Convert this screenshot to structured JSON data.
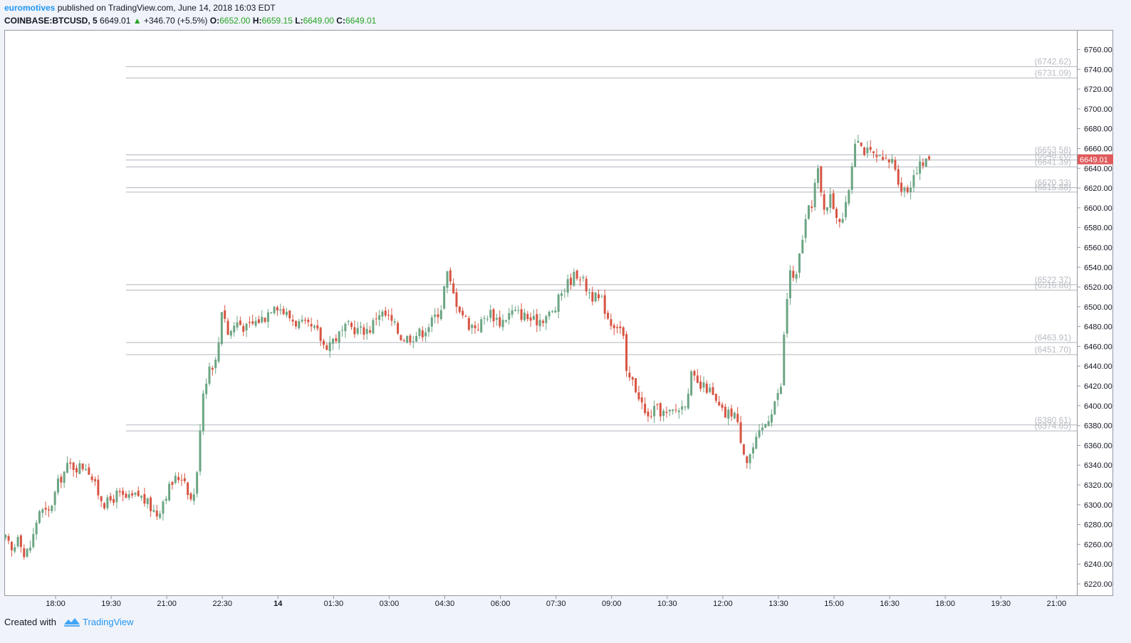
{
  "header": {
    "author": "euromotives",
    "published": "published on TradingView.com, June 14, 2018 16:03 EDT"
  },
  "ticker": {
    "symbol": "COINBASE:BTCUSD, 5",
    "last": "6649.01",
    "change": "+346.70 (+5.5%)",
    "o_label": "O:",
    "o": "6652.00",
    "h_label": "H:",
    "h": "6659.15",
    "l_label": "L:",
    "l": "6649.00",
    "c_label": "C:",
    "c": "6649.01"
  },
  "footer": {
    "created_with": "Created with",
    "brand": "TradingView"
  },
  "colors": {
    "up": "#6ba583",
    "down": "#d75442",
    "last_badge": "#e05a5a",
    "level": "#b2b5be",
    "link": "#2196f3"
  },
  "chart_data": {
    "type": "candlestick",
    "title": "",
    "xlabel": "",
    "ylabel": "",
    "ylim": [
      6210,
      6778
    ],
    "y_ticks": [
      6220,
      6240,
      6260,
      6280,
      6300,
      6320,
      6340,
      6360,
      6380,
      6400,
      6420,
      6440,
      6460,
      6480,
      6500,
      6520,
      6540,
      6560,
      6580,
      6600,
      6620,
      6640,
      6660,
      6680,
      6700,
      6720,
      6740,
      6760
    ],
    "y_tick_labels": [
      "6220.00",
      "6240.00",
      "6260.00",
      "6280.00",
      "6300.00",
      "6320.00",
      "6340.00",
      "6360.00",
      "6380.00",
      "6400.00",
      "6420.00",
      "6440.00",
      "6460.00",
      "6480.00",
      "6500.00",
      "6520.00",
      "6540.00",
      "6560.00",
      "6580.00",
      "6600.00",
      "6620.00",
      "6640.00",
      "6660.00",
      "6680.00",
      "6700.00",
      "6720.00",
      "6740.00",
      "6760.00"
    ],
    "x_ticks": [
      {
        "label": "18:00",
        "hours": 0
      },
      {
        "label": "19:30",
        "hours": 1.5
      },
      {
        "label": "21:00",
        "hours": 3
      },
      {
        "label": "22:30",
        "hours": 4.5
      },
      {
        "label": "14",
        "hours": 6,
        "bold": true
      },
      {
        "label": "01:30",
        "hours": 7.5
      },
      {
        "label": "03:00",
        "hours": 9
      },
      {
        "label": "04:30",
        "hours": 10.5
      },
      {
        "label": "06:00",
        "hours": 12
      },
      {
        "label": "07:30",
        "hours": 13.5
      },
      {
        "label": "09:00",
        "hours": 15
      },
      {
        "label": "10:30",
        "hours": 16.5
      },
      {
        "label": "12:00",
        "hours": 18
      },
      {
        "label": "13:30",
        "hours": 19.5
      },
      {
        "label": "15:00",
        "hours": 21
      },
      {
        "label": "16:30",
        "hours": 22.5
      },
      {
        "label": "18:00",
        "hours": 24
      },
      {
        "label": "19:30",
        "hours": 25.5
      },
      {
        "label": "21:00",
        "hours": 27
      }
    ],
    "bar_minutes": 5,
    "last_price": 6649.01,
    "last_price_label": "6649.01",
    "levels": [
      {
        "value": 6742.62,
        "label": "(6742.62)"
      },
      {
        "value": 6731.09,
        "label": "(6731.09)"
      },
      {
        "value": 6653.58,
        "label": "(6653.58)"
      },
      {
        "value": 6648.26,
        "label": "(6648.26)"
      },
      {
        "value": 6641.39,
        "label": "(6641.39)"
      },
      {
        "value": 6620.33,
        "label": "(6620.33)"
      },
      {
        "value": 6615.88,
        "label": "(6615.88)"
      },
      {
        "value": 6522.37,
        "label": "(6522.37)"
      },
      {
        "value": 6516.86,
        "label": "(6516.86)"
      },
      {
        "value": 6463.91,
        "label": "(6463.91)"
      },
      {
        "value": 6451.7,
        "label": "(6451.70)"
      },
      {
        "value": 6380.61,
        "label": "(6380.61)"
      },
      {
        "value": 6374.65,
        "label": "(6374.65)"
      }
    ],
    "level_start_hours": 1.9,
    "anchors": [
      [
        -1.35,
        6265
      ],
      [
        -1.15,
        6250
      ],
      [
        -1.0,
        6275
      ],
      [
        -0.85,
        6248
      ],
      [
        -0.65,
        6260
      ],
      [
        -0.45,
        6295
      ],
      [
        -0.2,
        6290
      ],
      [
        0.1,
        6325
      ],
      [
        0.35,
        6340
      ],
      [
        0.6,
        6338
      ],
      [
        0.85,
        6340
      ],
      [
        1.1,
        6315
      ],
      [
        1.35,
        6300
      ],
      [
        1.65,
        6310
      ],
      [
        1.95,
        6305
      ],
      [
        2.25,
        6310
      ],
      [
        2.5,
        6300
      ],
      [
        2.75,
        6290
      ],
      [
        2.95,
        6310
      ],
      [
        3.2,
        6325
      ],
      [
        3.45,
        6330
      ],
      [
        3.65,
        6305
      ],
      [
        3.8,
        6320
      ],
      [
        3.95,
        6410
      ],
      [
        4.15,
        6440
      ],
      [
        4.35,
        6445
      ],
      [
        4.5,
        6505
      ],
      [
        4.65,
        6472
      ],
      [
        4.9,
        6485
      ],
      [
        5.15,
        6478
      ],
      [
        5.4,
        6485
      ],
      [
        5.65,
        6490
      ],
      [
        5.9,
        6505
      ],
      [
        6.15,
        6495
      ],
      [
        6.45,
        6485
      ],
      [
        6.75,
        6480
      ],
      [
        7.05,
        6475
      ],
      [
        7.25,
        6460
      ],
      [
        7.6,
        6470
      ],
      [
        7.9,
        6480
      ],
      [
        8.2,
        6476
      ],
      [
        8.5,
        6478
      ],
      [
        8.7,
        6495
      ],
      [
        8.95,
        6490
      ],
      [
        9.15,
        6480
      ],
      [
        9.35,
        6468
      ],
      [
        9.6,
        6470
      ],
      [
        9.9,
        6475
      ],
      [
        10.15,
        6485
      ],
      [
        10.4,
        6500
      ],
      [
        10.55,
        6535
      ],
      [
        10.75,
        6510
      ],
      [
        10.95,
        6495
      ],
      [
        11.15,
        6482
      ],
      [
        11.4,
        6480
      ],
      [
        11.7,
        6495
      ],
      [
        12.0,
        6484
      ],
      [
        12.3,
        6495
      ],
      [
        12.6,
        6492
      ],
      [
        12.9,
        6485
      ],
      [
        13.2,
        6490
      ],
      [
        13.45,
        6495
      ],
      [
        13.65,
        6515
      ],
      [
        13.9,
        6528
      ],
      [
        14.1,
        6535
      ],
      [
        14.3,
        6520
      ],
      [
        14.5,
        6510
      ],
      [
        14.75,
        6505
      ],
      [
        14.95,
        6485
      ],
      [
        15.15,
        6482
      ],
      [
        15.3,
        6475
      ],
      [
        15.4,
        6430
      ],
      [
        15.55,
        6425
      ],
      [
        15.75,
        6410
      ],
      [
        15.95,
        6385
      ],
      [
        16.1,
        6395
      ],
      [
        16.3,
        6395
      ],
      [
        16.5,
        6390
      ],
      [
        16.7,
        6395
      ],
      [
        16.95,
        6400
      ],
      [
        17.15,
        6430
      ],
      [
        17.35,
        6418
      ],
      [
        17.6,
        6418
      ],
      [
        17.85,
        6400
      ],
      [
        18.05,
        6390
      ],
      [
        18.3,
        6395
      ],
      [
        18.5,
        6365
      ],
      [
        18.65,
        6345
      ],
      [
        18.85,
        6360
      ],
      [
        19.05,
        6375
      ],
      [
        19.25,
        6390
      ],
      [
        19.45,
        6410
      ],
      [
        19.55,
        6410
      ],
      [
        19.65,
        6470
      ],
      [
        19.8,
        6540
      ],
      [
        19.95,
        6520
      ],
      [
        20.1,
        6560
      ],
      [
        20.25,
        6590
      ],
      [
        20.4,
        6605
      ],
      [
        20.55,
        6640
      ],
      [
        20.7,
        6600
      ],
      [
        20.9,
        6610
      ],
      [
        21.1,
        6590
      ],
      [
        21.25,
        6590
      ],
      [
        21.35,
        6605
      ],
      [
        21.45,
        6635
      ],
      [
        21.6,
        6680
      ],
      [
        21.75,
        6660
      ],
      [
        21.95,
        6655
      ],
      [
        22.15,
        6650
      ],
      [
        22.35,
        6645
      ],
      [
        22.6,
        6648
      ],
      [
        22.8,
        6620
      ],
      [
        23.0,
        6618
      ],
      [
        23.2,
        6640
      ],
      [
        23.45,
        6645
      ],
      [
        23.6,
        6649.01
      ]
    ]
  }
}
